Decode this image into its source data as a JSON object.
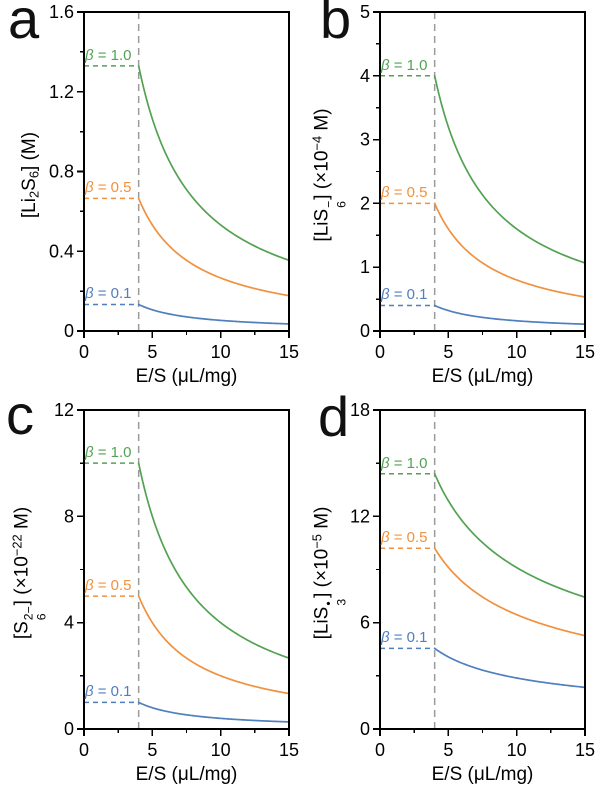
{
  "figure": {
    "background": "#ffffff",
    "axis_color": "#000000",
    "tick_label_font_px": 18
  },
  "chart_data": [
    {
      "type": "line",
      "panel_letter": "a",
      "xlabel": "E/S (μL/mg)",
      "ylabel_parts": [
        {
          "n": "[Li"
        },
        {
          "sub": "2"
        },
        {
          "n": "S"
        },
        {
          "sub": "6"
        },
        {
          "n": "] (M)"
        }
      ],
      "xlim": [
        0,
        15
      ],
      "ymax": 1.6,
      "xticks": [
        {
          "v": 0,
          "t": "0"
        },
        {
          "v": 5,
          "t": "5"
        },
        {
          "v": 10,
          "t": "10"
        },
        {
          "v": 15,
          "t": "15"
        }
      ],
      "yticks": [
        {
          "v": 0,
          "t": "0"
        },
        {
          "v": 0.4,
          "t": "0.4"
        },
        {
          "v": 0.8,
          "t": "0.8"
        },
        {
          "v": 1.2,
          "t": "1.2"
        },
        {
          "v": 1.6,
          "t": "1.6"
        }
      ],
      "xminor_step": 2.5,
      "yminor_step": 0.2,
      "threshold_x": 4,
      "threshold_line_color": "#9b9b9b",
      "decay_exponent": 1,
      "series": [
        {
          "name": "beta-1.0",
          "label": "β = 1.0",
          "plateau": 1.33,
          "color": "#53a253"
        },
        {
          "name": "beta-0.5",
          "label": "β = 0.5",
          "plateau": 0.665,
          "color": "#f0913e"
        },
        {
          "name": "beta-0.1",
          "label": "β = 0.1",
          "plateau": 0.133,
          "color": "#4f7fbd"
        }
      ]
    },
    {
      "type": "line",
      "panel_letter": "b",
      "xlabel": "E/S (μL/mg)",
      "ylabel_parts": [
        {
          "n": "[LiS"
        },
        {
          "stack": {
            "sup": "−",
            "sub": "6"
          }
        },
        {
          "n": "] (×10"
        },
        {
          "sup": "−4"
        },
        {
          "n": " M)"
        }
      ],
      "xlim": [
        0,
        15
      ],
      "ymax": 5,
      "xticks": [
        {
          "v": 0,
          "t": "0"
        },
        {
          "v": 5,
          "t": "5"
        },
        {
          "v": 10,
          "t": "10"
        },
        {
          "v": 15,
          "t": "15"
        }
      ],
      "yticks": [
        {
          "v": 0,
          "t": "0"
        },
        {
          "v": 1,
          "t": "1"
        },
        {
          "v": 2,
          "t": "2"
        },
        {
          "v": 3,
          "t": "3"
        },
        {
          "v": 4,
          "t": "4"
        },
        {
          "v": 5,
          "t": "5"
        }
      ],
      "xminor_step": 2.5,
      "yminor_step": 0.5,
      "threshold_x": 4,
      "threshold_line_color": "#9b9b9b",
      "decay_exponent": 1,
      "series": [
        {
          "name": "beta-1.0",
          "label": "β = 1.0",
          "plateau": 4.0,
          "color": "#53a253"
        },
        {
          "name": "beta-0.5",
          "label": "β = 0.5",
          "plateau": 2.0,
          "color": "#f0913e"
        },
        {
          "name": "beta-0.1",
          "label": "β = 0.1",
          "plateau": 0.4,
          "color": "#4f7fbd"
        }
      ]
    },
    {
      "type": "line",
      "panel_letter": "c",
      "xlabel": "E/S (μL/mg)",
      "ylabel_parts": [
        {
          "n": "[S"
        },
        {
          "stack": {
            "sup": "2−",
            "sub": "6"
          }
        },
        {
          "n": "] (×10"
        },
        {
          "sup": "−22"
        },
        {
          "n": " M)"
        }
      ],
      "xlim": [
        0,
        15
      ],
      "ymax": 12,
      "xticks": [
        {
          "v": 0,
          "t": "0"
        },
        {
          "v": 5,
          "t": "5"
        },
        {
          "v": 10,
          "t": "10"
        },
        {
          "v": 15,
          "t": "15"
        }
      ],
      "yticks": [
        {
          "v": 0,
          "t": "0"
        },
        {
          "v": 4,
          "t": "4"
        },
        {
          "v": 8,
          "t": "8"
        },
        {
          "v": 12,
          "t": "12"
        }
      ],
      "xminor_step": 2.5,
      "yminor_step": 2,
      "threshold_x": 4,
      "threshold_line_color": "#9b9b9b",
      "decay_exponent": 1,
      "series": [
        {
          "name": "beta-1.0",
          "label": "β = 1.0",
          "plateau": 10.0,
          "color": "#53a253"
        },
        {
          "name": "beta-0.5",
          "label": "β = 0.5",
          "plateau": 5.0,
          "color": "#f0913e"
        },
        {
          "name": "beta-0.1",
          "label": "β = 0.1",
          "plateau": 1.0,
          "color": "#4f7fbd"
        }
      ]
    },
    {
      "type": "line",
      "panel_letter": "d",
      "xlabel": "E/S (μL/mg)",
      "ylabel_parts": [
        {
          "n": "[LiS"
        },
        {
          "stack": {
            "sup": "•",
            "sub": "3"
          }
        },
        {
          "n": "] (×10"
        },
        {
          "sup": "−5"
        },
        {
          "n": " M)"
        }
      ],
      "xlim": [
        0,
        15
      ],
      "ymax": 18,
      "xticks": [
        {
          "v": 0,
          "t": "0"
        },
        {
          "v": 5,
          "t": "5"
        },
        {
          "v": 10,
          "t": "10"
        },
        {
          "v": 15,
          "t": "15"
        }
      ],
      "yticks": [
        {
          "v": 0,
          "t": "0"
        },
        {
          "v": 6,
          "t": "6"
        },
        {
          "v": 12,
          "t": "12"
        },
        {
          "v": 18,
          "t": "18"
        }
      ],
      "xminor_step": 2.5,
      "yminor_step": 3,
      "threshold_x": 4,
      "threshold_line_color": "#9b9b9b",
      "decay_exponent": 0.5,
      "series": [
        {
          "name": "beta-1.0",
          "label": "β = 1.0",
          "plateau": 14.4,
          "color": "#53a253"
        },
        {
          "name": "beta-0.5",
          "label": "β = 0.5",
          "plateau": 10.2,
          "color": "#f0913e"
        },
        {
          "name": "beta-0.1",
          "label": "β = 0.1",
          "plateau": 4.55,
          "color": "#4f7fbd"
        }
      ]
    }
  ]
}
